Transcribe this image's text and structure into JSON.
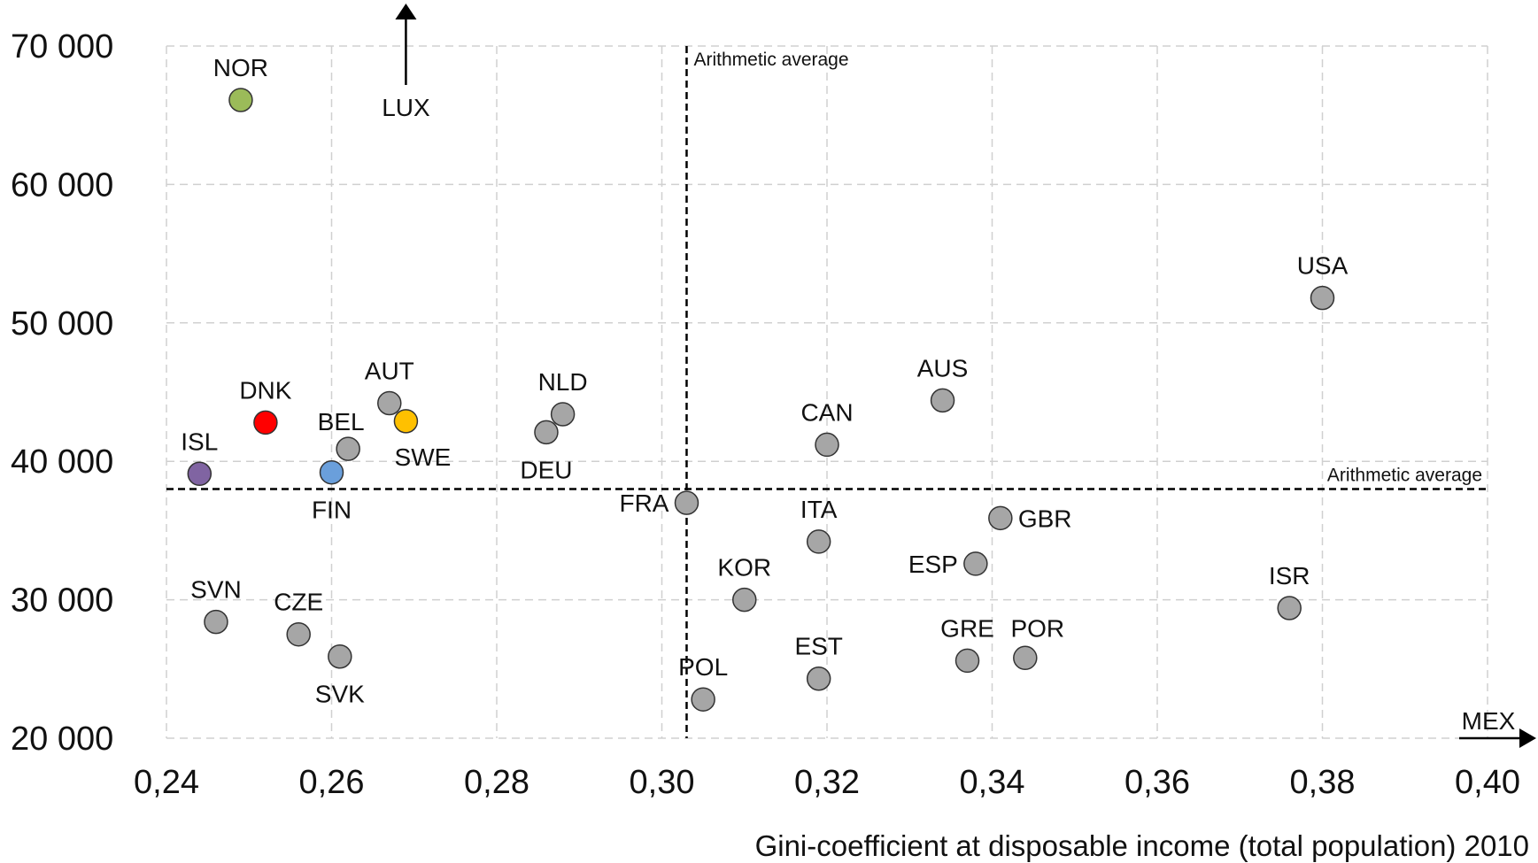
{
  "chart_data": {
    "type": "scatter",
    "title": "",
    "xlabel": "Gini-coefficient at disposable income (total population) 2010",
    "ylabel": "",
    "xlim": [
      0.24,
      0.4
    ],
    "ylim": [
      20000,
      70000
    ],
    "x_ticks": [
      {
        "value": 0.24,
        "label": "0,24"
      },
      {
        "value": 0.26,
        "label": "0,26"
      },
      {
        "value": 0.28,
        "label": "0,28"
      },
      {
        "value": 0.3,
        "label": "0,30"
      },
      {
        "value": 0.32,
        "label": "0,32"
      },
      {
        "value": 0.34,
        "label": "0,34"
      },
      {
        "value": 0.36,
        "label": "0,36"
      },
      {
        "value": 0.38,
        "label": "0,38"
      },
      {
        "value": 0.4,
        "label": "0,40"
      }
    ],
    "y_ticks": [
      {
        "value": 20000,
        "label": "20 000"
      },
      {
        "value": 30000,
        "label": "30 000"
      },
      {
        "value": 40000,
        "label": "40 000"
      },
      {
        "value": 50000,
        "label": "50 000"
      },
      {
        "value": 60000,
        "label": "60 000"
      },
      {
        "value": 70000,
        "label": "70 000"
      }
    ],
    "grid": true,
    "averages": {
      "x": {
        "value": 0.303,
        "label": "Arithmetic average"
      },
      "y": {
        "value": 38000,
        "label": "Arithmetic average"
      }
    },
    "points": [
      {
        "label": "NOR",
        "x": 0.249,
        "y": 66100,
        "color": "#9BBB59",
        "label_pos": "above"
      },
      {
        "label": "DNK",
        "x": 0.252,
        "y": 42800,
        "color": "#FF0000",
        "label_pos": "above"
      },
      {
        "label": "ISL",
        "x": 0.244,
        "y": 39100,
        "color": "#8064A2",
        "label_pos": "above"
      },
      {
        "label": "FIN",
        "x": 0.26,
        "y": 39200,
        "color": "#6A9FDB",
        "label_pos": "below"
      },
      {
        "label": "BEL",
        "x": 0.262,
        "y": 40900,
        "color": "#A6A6A6",
        "label_pos": "above-left"
      },
      {
        "label": "AUT",
        "x": 0.267,
        "y": 44200,
        "color": "#A6A6A6",
        "label_pos": "above"
      },
      {
        "label": "SWE",
        "x": 0.269,
        "y": 42900,
        "color": "#FFC000",
        "label_pos": "below-right"
      },
      {
        "label": "NLD",
        "x": 0.288,
        "y": 43400,
        "color": "#A6A6A6",
        "label_pos": "above"
      },
      {
        "label": "DEU",
        "x": 0.286,
        "y": 42100,
        "color": "#A6A6A6",
        "label_pos": "below"
      },
      {
        "label": "FRA",
        "x": 0.303,
        "y": 37000,
        "color": "#A6A6A6",
        "label_pos": "left"
      },
      {
        "label": "CAN",
        "x": 0.32,
        "y": 41200,
        "color": "#A6A6A6",
        "label_pos": "above"
      },
      {
        "label": "AUS",
        "x": 0.334,
        "y": 44400,
        "color": "#A6A6A6",
        "label_pos": "above"
      },
      {
        "label": "USA",
        "x": 0.38,
        "y": 51800,
        "color": "#A6A6A6",
        "label_pos": "above"
      },
      {
        "label": "ITA",
        "x": 0.319,
        "y": 34200,
        "color": "#A6A6A6",
        "label_pos": "above"
      },
      {
        "label": "GBR",
        "x": 0.341,
        "y": 35900,
        "color": "#A6A6A6",
        "label_pos": "right"
      },
      {
        "label": "ESP",
        "x": 0.338,
        "y": 32600,
        "color": "#A6A6A6",
        "label_pos": "left"
      },
      {
        "label": "KOR",
        "x": 0.31,
        "y": 30000,
        "color": "#A6A6A6",
        "label_pos": "above"
      },
      {
        "label": "ISR",
        "x": 0.376,
        "y": 29400,
        "color": "#A6A6A6",
        "label_pos": "above"
      },
      {
        "label": "SVN",
        "x": 0.246,
        "y": 28400,
        "color": "#A6A6A6",
        "label_pos": "above"
      },
      {
        "label": "CZE",
        "x": 0.256,
        "y": 27500,
        "color": "#A6A6A6",
        "label_pos": "above"
      },
      {
        "label": "SVK",
        "x": 0.261,
        "y": 25900,
        "color": "#A6A6A6",
        "label_pos": "below"
      },
      {
        "label": "GRE",
        "x": 0.337,
        "y": 25600,
        "color": "#A6A6A6",
        "label_pos": "above"
      },
      {
        "label": "POR",
        "x": 0.344,
        "y": 25800,
        "color": "#A6A6A6",
        "label_pos": "above-right"
      },
      {
        "label": "EST",
        "x": 0.319,
        "y": 24300,
        "color": "#A6A6A6",
        "label_pos": "above"
      },
      {
        "label": "POL",
        "x": 0.305,
        "y": 22800,
        "color": "#A6A6A6",
        "label_pos": "above"
      }
    ],
    "offscale": [
      {
        "label": "LUX",
        "direction": "up",
        "x": 0.269
      },
      {
        "label": "MEX",
        "direction": "right",
        "y": 20000
      }
    ]
  }
}
